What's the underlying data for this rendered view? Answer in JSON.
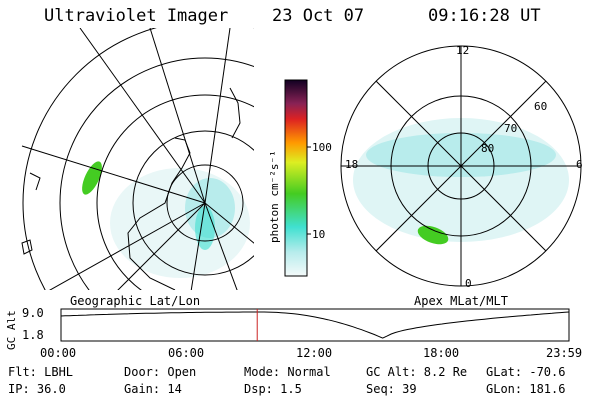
{
  "header": {
    "instrument": "Ultraviolet Imager",
    "date": "23 Oct 07",
    "time": "09:16:28 UT"
  },
  "left_panel": {
    "caption": "Geographic Lat/Lon"
  },
  "right_panel": {
    "caption": "Apex MLat/MLT",
    "mlt_labels": {
      "top": "12",
      "left": "18",
      "right": "6",
      "bottom": "0"
    },
    "lat_labels": [
      "60",
      "70",
      "80"
    ]
  },
  "colorbar": {
    "unit_label": "photon cm⁻²s⁻¹",
    "ticks": [
      "100",
      "10"
    ]
  },
  "altitude_plot": {
    "ylabel": "GC Alt",
    "y_max": "9.0",
    "y_min": "1.8",
    "x_ticks": [
      "00:00",
      "06:00",
      "12:00",
      "18:00",
      "23:59"
    ],
    "cursor_hour": 9.27,
    "cursor_color": "#cc2222"
  },
  "status": {
    "flt": "Flt: LBHL",
    "ip": "IP: 36.0",
    "door": "Door: Open",
    "gain": "Gain: 14",
    "mode": "Mode: Normal",
    "dsp": "Dsp:    1.5",
    "gc_alt": "GC Alt: 8.2 Re",
    "seq": "Seq: 39",
    "glat": "GLat: -70.6",
    "glon": "GLon: 181.6"
  },
  "colors": {
    "aurora_light": "#b8ecec",
    "aurora_mid": "#40e0d0",
    "aurora_green": "#44cc22"
  }
}
